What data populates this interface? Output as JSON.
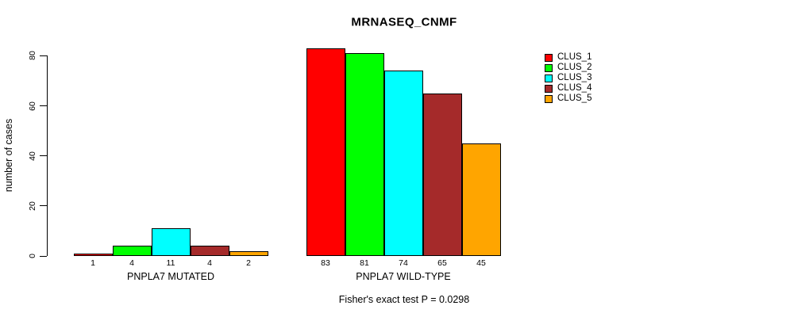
{
  "title": "MRNASEQ_CNMF",
  "annotation": "Fisher's exact test P = 0.0298",
  "y_axis": {
    "label": "number of cases",
    "ticks": [
      0,
      20,
      40,
      60,
      80
    ]
  },
  "chart_data": {
    "type": "bar",
    "title": "MRNASEQ_CNMF",
    "ylabel": "number of cases",
    "xlabel": "",
    "ylim": [
      0,
      80
    ],
    "yticks": [
      0,
      20,
      40,
      60,
      80
    ],
    "grid": false,
    "legend_position": "right-outside-top",
    "annotation": "Fisher's exact test P = 0.0298",
    "categories": [
      "PNPLA7 MUTATED",
      "PNPLA7 WILD-TYPE"
    ],
    "bar_value_labels_shown": true,
    "series": [
      {
        "name": "CLUS_1",
        "color": "#FF0000",
        "values": [
          1,
          83
        ]
      },
      {
        "name": "CLUS_2",
        "color": "#00FF00",
        "values": [
          4,
          81
        ]
      },
      {
        "name": "CLUS_3",
        "color": "#00FFFF",
        "values": [
          11,
          74
        ]
      },
      {
        "name": "CLUS_4",
        "color": "#A52A2A",
        "values": [
          4,
          65
        ]
      },
      {
        "name": "CLUS_5",
        "color": "#FFA500",
        "values": [
          2,
          45
        ]
      }
    ]
  }
}
